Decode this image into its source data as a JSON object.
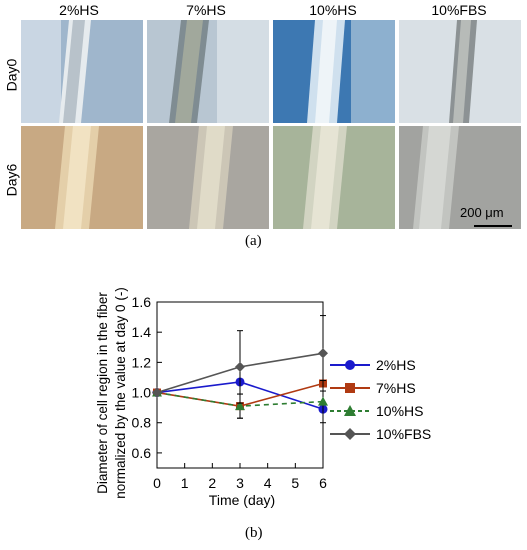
{
  "panel_a": {
    "columns": [
      "2%HS",
      "7%HS",
      "10%HS",
      "10%FBS"
    ],
    "rows": [
      "Day0",
      "Day6"
    ],
    "scale_bar_label": "200 μm",
    "label": "(a)"
  },
  "panel_b": {
    "label": "(b)"
  },
  "chart_data": {
    "type": "line",
    "x": [
      0,
      3,
      6
    ],
    "xlabel": "Time (day)",
    "ylabel_line1": "Diameter of cell region in the fiber",
    "ylabel_line2": "normalized by the value at day 0  (-)",
    "xlim": [
      0,
      6
    ],
    "ylim": [
      0.5,
      1.6
    ],
    "xticks": [
      "0",
      "1",
      "2",
      "3",
      "4",
      "5",
      "6"
    ],
    "yticks": [
      "0.6",
      "0.8",
      "1.0",
      "1.2",
      "1.4",
      "1.6"
    ],
    "legend_position": "right",
    "series": [
      {
        "name": "2%HS",
        "values": [
          1.0,
          1.07,
          0.89
        ],
        "errors": [
          0,
          0.0,
          0.0
        ],
        "color": "#1a1acc",
        "marker": "circle",
        "dash": "solid"
      },
      {
        "name": "7%HS",
        "values": [
          1.0,
          0.91,
          1.06
        ],
        "errors": [
          0,
          0.08,
          0.0
        ],
        "color": "#b03a12",
        "marker": "square",
        "dash": "solid"
      },
      {
        "name": "10%HS",
        "values": [
          1.0,
          0.91,
          0.94
        ],
        "errors": [
          0,
          0.08,
          0.14
        ],
        "color": "#2e7d32",
        "marker": "triangle",
        "dash": "dashed"
      },
      {
        "name": "10%FBS",
        "values": [
          1.0,
          1.17,
          1.26
        ],
        "errors": [
          0,
          0.24,
          0.25
        ],
        "color": "#555555",
        "marker": "diamond",
        "dash": "solid"
      }
    ]
  }
}
